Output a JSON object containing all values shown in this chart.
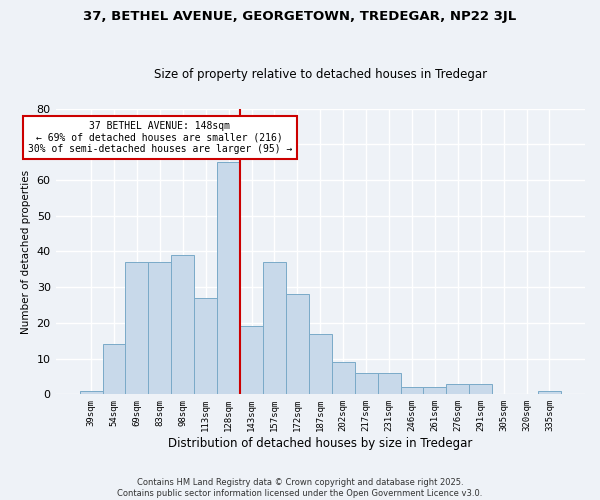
{
  "title": "37, BETHEL AVENUE, GEORGETOWN, TREDEGAR, NP22 3JL",
  "subtitle": "Size of property relative to detached houses in Tredegar",
  "xlabel": "Distribution of detached houses by size in Tredegar",
  "ylabel": "Number of detached properties",
  "bin_labels": [
    "39sqm",
    "54sqm",
    "69sqm",
    "83sqm",
    "98sqm",
    "113sqm",
    "128sqm",
    "143sqm",
    "157sqm",
    "172sqm",
    "187sqm",
    "202sqm",
    "217sqm",
    "231sqm",
    "246sqm",
    "261sqm",
    "276sqm",
    "291sqm",
    "305sqm",
    "320sqm",
    "335sqm"
  ],
  "bar_values": [
    1,
    14,
    37,
    37,
    39,
    27,
    65,
    19,
    37,
    28,
    17,
    9,
    6,
    6,
    2,
    2,
    3,
    3,
    0,
    0,
    1
  ],
  "bar_color": "#c8d9ea",
  "bar_edge_color": "#7aaac8",
  "vline_color": "#cc0000",
  "annotation_title": "37 BETHEL AVENUE: 148sqm",
  "annotation_line1": "← 69% of detached houses are smaller (216)",
  "annotation_line2": "30% of semi-detached houses are larger (95) →",
  "annotation_box_color": "#ffffff",
  "annotation_box_edge": "#cc0000",
  "ylim": [
    0,
    80
  ],
  "yticks": [
    0,
    10,
    20,
    30,
    40,
    50,
    60,
    70,
    80
  ],
  "footnote1": "Contains HM Land Registry data © Crown copyright and database right 2025.",
  "footnote2": "Contains public sector information licensed under the Open Government Licence v3.0.",
  "background_color": "#eef2f7",
  "grid_color": "#ffffff"
}
